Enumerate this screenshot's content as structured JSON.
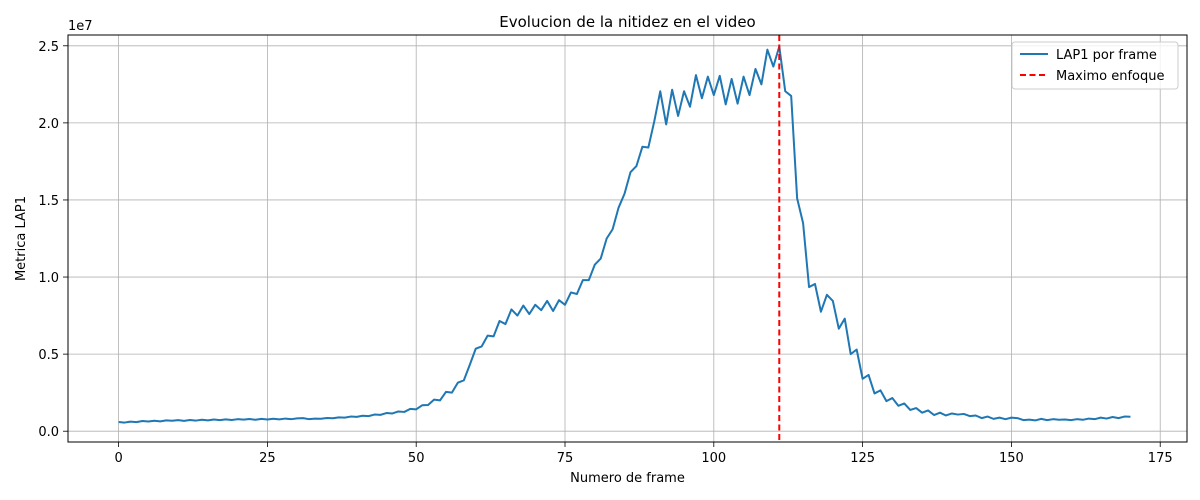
{
  "chart_data": {
    "type": "line",
    "title": "Evolucion de la nitidez en el video",
    "xlabel": "Numero de frame",
    "ylabel": "Metrica LAP1",
    "y_offset_label": "1e7",
    "xlim": [
      -8.5,
      179.5
    ],
    "ylim": [
      -0.07,
      2.57
    ],
    "x_ticks": [
      0,
      25,
      50,
      75,
      100,
      125,
      150,
      175
    ],
    "x_tick_labels": [
      "0",
      "25",
      "50",
      "75",
      "100",
      "125",
      "150",
      "175"
    ],
    "y_ticks": [
      0.0,
      0.5,
      1.0,
      1.5,
      2.0,
      2.5
    ],
    "y_tick_labels": [
      "0.0",
      "0.5",
      "1.0",
      "1.5",
      "2.0",
      "2.5"
    ],
    "grid": true,
    "legend_position": "top-right",
    "series": [
      {
        "name": "LAP1 por frame",
        "color": "#1f77b4",
        "style": "solid",
        "x_start": 0,
        "values": [
          0.06,
          0.056,
          0.062,
          0.059,
          0.066,
          0.063,
          0.068,
          0.064,
          0.07,
          0.068,
          0.072,
          0.067,
          0.073,
          0.069,
          0.074,
          0.07,
          0.076,
          0.072,
          0.077,
          0.073,
          0.078,
          0.075,
          0.079,
          0.074,
          0.08,
          0.076,
          0.081,
          0.077,
          0.082,
          0.078,
          0.083,
          0.085,
          0.078,
          0.082,
          0.081,
          0.086,
          0.084,
          0.09,
          0.088,
          0.095,
          0.093,
          0.1,
          0.098,
          0.108,
          0.106,
          0.118,
          0.115,
          0.128,
          0.125,
          0.145,
          0.142,
          0.168,
          0.17,
          0.205,
          0.2,
          0.255,
          0.25,
          0.315,
          0.33,
          0.43,
          0.535,
          0.55,
          0.62,
          0.615,
          0.715,
          0.695,
          0.79,
          0.75,
          0.815,
          0.76,
          0.82,
          0.785,
          0.845,
          0.78,
          0.85,
          0.82,
          0.9,
          0.89,
          0.98,
          0.98,
          1.08,
          1.12,
          1.25,
          1.31,
          1.45,
          1.54,
          1.68,
          1.72,
          1.845,
          1.84,
          2.01,
          2.205,
          1.99,
          2.215,
          2.045,
          2.205,
          2.105,
          2.31,
          2.16,
          2.3,
          2.18,
          2.305,
          2.12,
          2.285,
          2.125,
          2.3,
          2.18,
          2.35,
          2.25,
          2.475,
          2.365,
          2.495,
          2.205,
          2.175,
          1.51,
          1.35,
          0.935,
          0.955,
          0.775,
          0.885,
          0.845,
          0.665,
          0.73,
          0.5,
          0.53,
          0.34,
          0.365,
          0.245,
          0.265,
          0.195,
          0.215,
          0.165,
          0.18,
          0.138,
          0.15,
          0.12,
          0.135,
          0.105,
          0.12,
          0.102,
          0.115,
          0.108,
          0.112,
          0.098,
          0.102,
          0.085,
          0.095,
          0.08,
          0.088,
          0.078,
          0.088,
          0.085,
          0.072,
          0.075,
          0.07,
          0.08,
          0.072,
          0.078,
          0.074,
          0.076,
          0.072,
          0.078,
          0.074,
          0.082,
          0.078,
          0.088,
          0.082,
          0.092,
          0.085,
          0.095,
          0.094
        ]
      }
    ],
    "reference_line": {
      "name": "Maximo enfoque",
      "orientation": "vertical",
      "x": 111,
      "color": "#ff0000",
      "style": "dashed"
    }
  }
}
